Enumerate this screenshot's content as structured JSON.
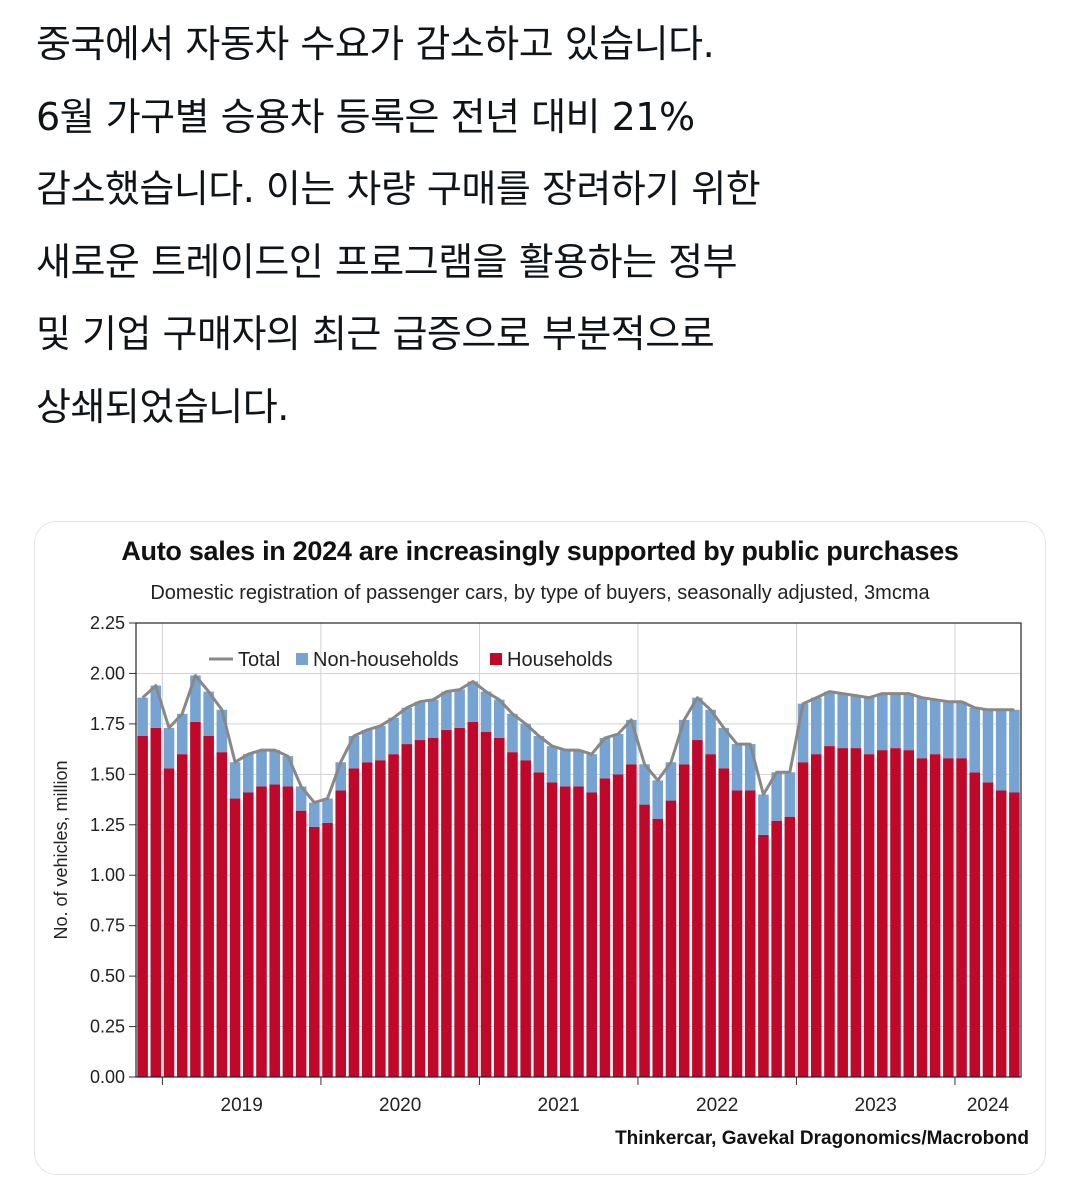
{
  "post": {
    "lines": [
      "중국에서 자동차 수요가 감소하고 있습니다.",
      "6월 가구별 승용차 등록은 전년 대비 21%",
      "감소했습니다. 이는 차량 구매를 장려하기 위한",
      "새로운 트레이드인 프로그램을 활용하는 정부",
      "및 기업 구매자의 최근 급증으로 부분적으로",
      "상쇄되었습니다."
    ]
  },
  "chart_data": {
    "type": "bar",
    "title": "Auto sales in 2024 are increasingly supported by public purchases",
    "subtitle": "Domestic registration of passenger cars, by type of buyers, seasonally adjusted, 3mcma",
    "ylabel": "No. of vehicles, million",
    "ylim": [
      0,
      2.25
    ],
    "yticks": [
      "0.00",
      "0.25",
      "0.50",
      "0.75",
      "1.00",
      "1.25",
      "1.50",
      "1.75",
      "2.00",
      "2.25"
    ],
    "xlabels": [
      "2019",
      "2020",
      "2021",
      "2022",
      "2023",
      "2024"
    ],
    "stacked": true,
    "grid": true,
    "legend_position": "top-left",
    "source": "Thinkercar, Gavekal Dragonomics/Macrobond",
    "series": [
      {
        "name": "Households",
        "color": "#c0082a",
        "values": [
          1.69,
          1.73,
          1.53,
          1.6,
          1.76,
          1.69,
          1.61,
          1.38,
          1.41,
          1.44,
          1.45,
          1.44,
          1.32,
          1.24,
          1.26,
          1.42,
          1.53,
          1.56,
          1.57,
          1.6,
          1.65,
          1.67,
          1.68,
          1.72,
          1.73,
          1.76,
          1.71,
          1.68,
          1.61,
          1.57,
          1.51,
          1.46,
          1.44,
          1.44,
          1.41,
          1.48,
          1.5,
          1.55,
          1.35,
          1.28,
          1.37,
          1.55,
          1.67,
          1.6,
          1.53,
          1.42,
          1.42,
          1.2,
          1.27,
          1.29,
          1.56,
          1.6,
          1.64,
          1.63,
          1.63,
          1.6,
          1.62,
          1.63,
          1.62,
          1.58,
          1.6,
          1.58,
          1.58,
          1.51,
          1.46,
          1.42,
          1.41
        ]
      },
      {
        "name": "Non-households",
        "color": "#76a3d2",
        "values": [
          0.19,
          0.21,
          0.2,
          0.2,
          0.23,
          0.22,
          0.21,
          0.18,
          0.19,
          0.18,
          0.17,
          0.15,
          0.12,
          0.12,
          0.12,
          0.14,
          0.16,
          0.16,
          0.17,
          0.18,
          0.18,
          0.19,
          0.19,
          0.19,
          0.19,
          0.2,
          0.2,
          0.19,
          0.19,
          0.18,
          0.18,
          0.18,
          0.18,
          0.18,
          0.19,
          0.2,
          0.2,
          0.22,
          0.2,
          0.19,
          0.19,
          0.22,
          0.21,
          0.22,
          0.2,
          0.23,
          0.23,
          0.2,
          0.24,
          0.22,
          0.29,
          0.28,
          0.27,
          0.27,
          0.26,
          0.28,
          0.28,
          0.27,
          0.28,
          0.3,
          0.27,
          0.28,
          0.28,
          0.32,
          0.36,
          0.4,
          0.41
        ]
      },
      {
        "name": "Total",
        "color": "#888888",
        "values": [
          1.88,
          1.94,
          1.73,
          1.8,
          1.99,
          1.91,
          1.82,
          1.56,
          1.6,
          1.62,
          1.62,
          1.59,
          1.44,
          1.36,
          1.38,
          1.56,
          1.69,
          1.72,
          1.74,
          1.78,
          1.83,
          1.86,
          1.87,
          1.91,
          1.92,
          1.96,
          1.91,
          1.87,
          1.8,
          1.75,
          1.69,
          1.64,
          1.62,
          1.62,
          1.6,
          1.68,
          1.7,
          1.77,
          1.55,
          1.47,
          1.56,
          1.77,
          1.88,
          1.82,
          1.73,
          1.65,
          1.65,
          1.4,
          1.51,
          1.51,
          1.85,
          1.88,
          1.91,
          1.9,
          1.89,
          1.88,
          1.9,
          1.9,
          1.9,
          1.88,
          1.87,
          1.86,
          1.86,
          1.83,
          1.82,
          1.82,
          1.82
        ]
      }
    ]
  }
}
